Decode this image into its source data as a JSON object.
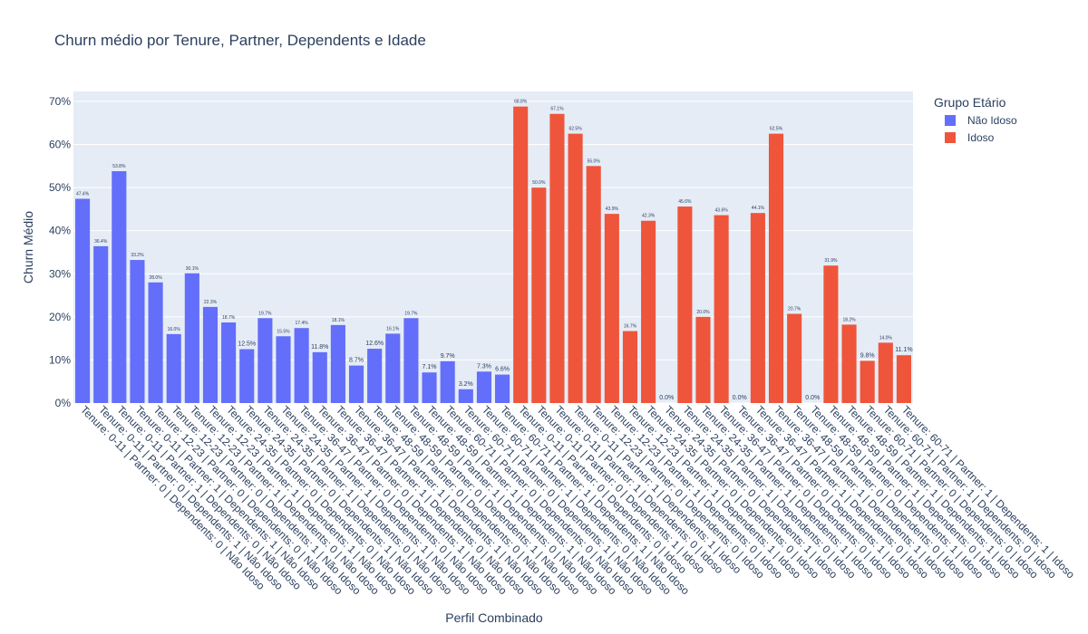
{
  "chart_data": {
    "type": "bar",
    "title": "Churn médio por Tenure, Partner, Dependents e Idade",
    "x_label": "Perfil Combinado",
    "y_label": "Churn Médio",
    "legend_title": "Grupo Etário",
    "legend_position": "right",
    "categories": [
      "Tenure: 0-11 | Partner: 0 | Dependents: 0 | Não Idoso",
      "Tenure: 0-11 | Partner: 0 | Dependents: 1 | Não Idoso",
      "Tenure: 0-11 | Partner: 1 | Dependents: 0 | Não Idoso",
      "Tenure: 0-11 | Partner: 1 | Dependents: 1 | Não Idoso",
      "Tenure: 12-23 | Partner: 0 | Dependents: 0 | Não Idoso",
      "Tenure: 12-23 | Partner: 0 | Dependents: 1 | Não Idoso",
      "Tenure: 12-23 | Partner: 1 | Dependents: 0 | Não Idoso",
      "Tenure: 12-23 | Partner: 1 | Dependents: 1 | Não Idoso",
      "Tenure: 24-35 | Partner: 0 | Dependents: 0 | Não Idoso",
      "Tenure: 24-35 | Partner: 0 | Dependents: 1 | Não Idoso",
      "Tenure: 24-35 | Partner: 1 | Dependents: 0 | Não Idoso",
      "Tenure: 24-35 | Partner: 1 | Dependents: 1 | Não Idoso",
      "Tenure: 36-47 | Partner: 0 | Dependents: 0 | Não Idoso",
      "Tenure: 36-47 | Partner: 0 | Dependents: 1 | Não Idoso",
      "Tenure: 36-47 | Partner: 1 | Dependents: 0 | Não Idoso",
      "Tenure: 36-47 | Partner: 1 | Dependents: 1 | Não Idoso",
      "Tenure: 48-59 | Partner: 0 | Dependents: 0 | Não Idoso",
      "Tenure: 48-59 | Partner: 0 | Dependents: 1 | Não Idoso",
      "Tenure: 48-59 | Partner: 1 | Dependents: 0 | Não Idoso",
      "Tenure: 48-59 | Partner: 1 | Dependents: 1 | Não Idoso",
      "Tenure: 60-71 | Partner: 0 | Dependents: 0 | Não Idoso",
      "Tenure: 60-71 | Partner: 0 | Dependents: 1 | Não Idoso",
      "Tenure: 60-71 | Partner: 1 | Dependents: 0 | Não Idoso",
      "Tenure: 60-71 | Partner: 1 | Dependents: 1 | Não Idoso",
      "Tenure: 0-11 | Partner: 0 | Dependents: 0 | Idoso",
      "Tenure: 0-11 | Partner: 0 | Dependents: 1 | Idoso",
      "Tenure: 0-11 | Partner: 1 | Dependents: 0 | Idoso",
      "Tenure: 0-11 | Partner: 1 | Dependents: 1 | Idoso",
      "Tenure: 12-23 | Partner: 0 | Dependents: 0 | Idoso",
      "Tenure: 12-23 | Partner: 1 | Dependents: 0 | Idoso",
      "Tenure: 12-23 | Partner: 1 | Dependents: 1 | Idoso",
      "Tenure: 24-35 | Partner: 0 | Dependents: 0 | Idoso",
      "Tenure: 24-35 | Partner: 0 | Dependents: 1 | Idoso",
      "Tenure: 24-35 | Partner: 1 | Dependents: 0 | Idoso",
      "Tenure: 24-35 | Partner: 1 | Dependents: 1 | Idoso",
      "Tenure: 36-47 | Partner: 0 | Dependents: 0 | Idoso",
      "Tenure: 36-47 | Partner: 0 | Dependents: 1 | Idoso",
      "Tenure: 36-47 | Partner: 1 | Dependents: 0 | Idoso",
      "Tenure: 36-47 | Partner: 1 | Dependents: 1 | Idoso",
      "Tenure: 48-59 | Partner: 0 | Dependents: 0 | Idoso",
      "Tenure: 48-59 | Partner: 0 | Dependents: 1 | Idoso",
      "Tenure: 48-59 | Partner: 1 | Dependents: 0 | Idoso",
      "Tenure: 48-59 | Partner: 1 | Dependents: 1 | Idoso",
      "Tenure: 60-71 | Partner: 0 | Dependents: 0 | Idoso",
      "Tenure: 60-71 | Partner: 1 | Dependents: 0 | Idoso",
      "Tenure: 60-71 | Partner: 1 | Dependents: 1 | Idoso"
    ],
    "series": [
      {
        "name": "Não Idoso",
        "color": "#636efa",
        "values": [
          47.4,
          36.4,
          53.8,
          33.2,
          28.0,
          16.0,
          30.1,
          22.3,
          18.7,
          12.5,
          19.7,
          15.5,
          17.4,
          11.8,
          18.1,
          8.7,
          12.6,
          16.1,
          19.7,
          7.1,
          9.7,
          3.2,
          7.3,
          6.6,
          null,
          null,
          null,
          null,
          null,
          null,
          null,
          null,
          null,
          null,
          null,
          null,
          null,
          null,
          null,
          null,
          null,
          null,
          null,
          null,
          null,
          null
        ],
        "value_labels": [
          "47.4%",
          "36.4%",
          "53.8%",
          "33.2%",
          "28.0%",
          "16.0%",
          "30.1%",
          "22.3%",
          "18.7%",
          "12.5%",
          "19.7%",
          "15.5%",
          "17.4%",
          "11.8%",
          "18.1%",
          "8.7%",
          "12.6%",
          "16.1%",
          "19.7%",
          "7.1%",
          "9.7%",
          "3.2%",
          "7.3%",
          "6.6%",
          null,
          null,
          null,
          null,
          null,
          null,
          null,
          null,
          null,
          null,
          null,
          null,
          null,
          null,
          null,
          null,
          null,
          null,
          null,
          null,
          null,
          null
        ]
      },
      {
        "name": "Idoso",
        "color": "#ef553b",
        "values": [
          null,
          null,
          null,
          null,
          null,
          null,
          null,
          null,
          null,
          null,
          null,
          null,
          null,
          null,
          null,
          null,
          null,
          null,
          null,
          null,
          null,
          null,
          null,
          null,
          68.8,
          50.0,
          67.1,
          62.5,
          55.0,
          43.9,
          16.7,
          42.3,
          0.0,
          45.6,
          20.0,
          43.6,
          0.0,
          44.1,
          62.5,
          20.7,
          0.0,
          31.9,
          18.2,
          9.8,
          14.0,
          11.1
        ],
        "value_labels": [
          null,
          null,
          null,
          null,
          null,
          null,
          null,
          null,
          null,
          null,
          null,
          null,
          null,
          null,
          null,
          null,
          null,
          null,
          null,
          null,
          null,
          null,
          null,
          null,
          "68.8%",
          "50.0%",
          "67.1%",
          "62.5%",
          "55.0%",
          "43.9%",
          "16.7%",
          "42.3%",
          "0.0%",
          "45.6%",
          "20.0%",
          "43.6%",
          "0.0%",
          "44.1%",
          "62.5%",
          "20.7%",
          "0.0%",
          "31.9%",
          "18.2%",
          "9.8%",
          "14.0%",
          "11.1%"
        ]
      }
    ],
    "ylim": [
      0,
      72.3
    ],
    "yticks": [
      {
        "value": 0,
        "label": "0%"
      },
      {
        "value": 10,
        "label": "10%"
      },
      {
        "value": 20,
        "label": "20%"
      },
      {
        "value": 30,
        "label": "30%"
      },
      {
        "value": 40,
        "label": "40%"
      },
      {
        "value": 50,
        "label": "50%"
      },
      {
        "value": 60,
        "label": "60%"
      },
      {
        "value": 70,
        "label": "70%"
      }
    ],
    "grid": true
  }
}
